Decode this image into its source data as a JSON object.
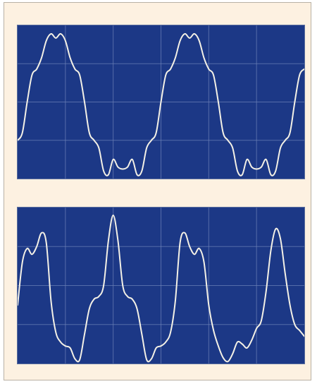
{
  "colors": {
    "frame_background": "#fdf1e1",
    "frame_border": "#b9b1a5",
    "screen_background": "#1c3886",
    "grid_line": "#6e82b8",
    "trace": "#f4f1e6"
  },
  "chart_data": [
    {
      "type": "line",
      "title": "",
      "xlabel": "",
      "ylabel": "",
      "grid": true,
      "grid_divisions": {
        "x": 6,
        "y": 4
      },
      "xlim": [
        0,
        6
      ],
      "ylim": [
        0,
        4
      ],
      "series": [
        {
          "x": [
            0.0,
            0.1,
            0.2,
            0.3,
            0.4,
            0.5,
            0.6,
            0.7,
            0.8,
            0.9,
            1.0,
            1.1,
            1.2,
            1.3,
            1.4,
            1.5,
            1.6,
            1.7,
            1.8,
            1.9,
            2.0,
            2.1,
            2.2,
            2.3,
            2.4,
            2.5,
            2.6,
            2.7,
            2.8,
            2.9,
            3.0,
            3.1,
            3.2,
            3.3,
            3.4,
            3.5,
            3.6,
            3.7,
            3.8,
            3.9,
            4.0,
            4.1,
            4.2,
            4.3,
            4.4,
            4.5,
            4.6,
            4.7,
            4.8,
            4.9,
            5.0,
            5.1,
            5.2,
            5.3,
            5.4,
            5.5,
            5.6,
            5.7,
            5.8,
            5.9,
            6.0
          ],
          "values": [
            1.0,
            1.2,
            2.0,
            2.7,
            2.86,
            3.15,
            3.6,
            3.78,
            3.67,
            3.78,
            3.6,
            3.15,
            2.86,
            2.7,
            2.0,
            1.2,
            1.0,
            0.8,
            0.2,
            0.1,
            0.5,
            0.3,
            0.25,
            0.3,
            0.5,
            0.1,
            0.2,
            0.8,
            1.0,
            1.2,
            2.0,
            2.7,
            2.86,
            3.15,
            3.6,
            3.78,
            3.67,
            3.78,
            3.6,
            3.15,
            2.86,
            2.7,
            2.0,
            1.2,
            1.0,
            0.8,
            0.2,
            0.1,
            0.5,
            0.3,
            0.25,
            0.3,
            0.5,
            0.1,
            0.2,
            0.8,
            1.0,
            1.2,
            2.0,
            2.7,
            2.86
          ]
        }
      ]
    },
    {
      "type": "line",
      "title": "",
      "xlabel": "",
      "ylabel": "",
      "grid": true,
      "grid_divisions": {
        "x": 6,
        "y": 4
      },
      "xlim": [
        0,
        6
      ],
      "ylim": [
        0,
        4
      ],
      "series": [
        {
          "x": [
            0.0,
            0.1,
            0.2,
            0.3,
            0.4,
            0.5,
            0.6,
            0.7,
            0.8,
            0.9,
            1.0,
            1.1,
            1.2,
            1.3,
            1.4,
            1.5,
            1.6,
            1.7,
            1.8,
            1.9,
            2.0,
            2.1,
            2.2,
            2.3,
            2.4,
            2.5,
            2.6,
            2.7,
            2.8,
            2.9,
            3.0,
            3.1,
            3.2,
            3.3,
            3.4,
            3.5,
            3.6,
            3.7,
            3.8,
            3.9,
            4.0,
            4.1,
            4.2,
            4.3,
            4.4,
            4.5,
            4.6,
            4.7,
            4.8,
            4.9,
            5.0,
            5.1,
            5.2,
            5.3,
            5.4,
            5.5,
            5.6,
            5.7,
            5.8,
            5.9,
            6.0
          ],
          "values": [
            1.5,
            2.6,
            2.95,
            2.8,
            3.0,
            3.35,
            3.1,
            1.6,
            0.8,
            0.55,
            0.45,
            0.4,
            0.12,
            0.1,
            0.75,
            1.4,
            1.65,
            1.72,
            2.0,
            3.15,
            3.8,
            3.15,
            2.0,
            1.72,
            1.65,
            1.4,
            0.75,
            0.1,
            0.12,
            0.4,
            0.45,
            0.55,
            0.8,
            1.6,
            3.1,
            3.35,
            3.0,
            2.8,
            2.95,
            2.6,
            1.5,
            0.85,
            0.45,
            0.15,
            0.05,
            0.25,
            0.55,
            0.5,
            0.4,
            0.6,
            0.9,
            1.1,
            1.85,
            2.9,
            3.45,
            3.2,
            2.3,
            1.5,
            1.0,
            0.85,
            0.7
          ]
        }
      ]
    }
  ]
}
